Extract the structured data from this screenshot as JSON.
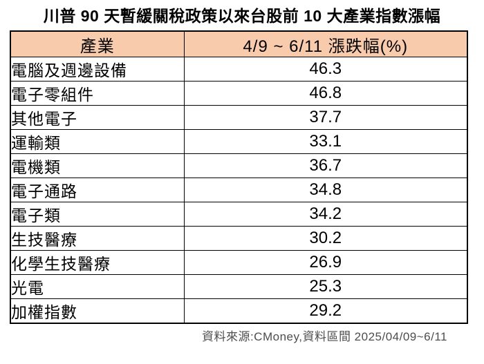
{
  "title": "川普 90 天暫緩關稅政策以來台股前 10 大產業指數漲幅",
  "footer": "資料來源:CMoney,資料區間 2025/04/09~6/11",
  "colors": {
    "header_bg": "#F8CBAD",
    "border": "#000000",
    "footer_text": "#4d4d4d"
  },
  "chart_data": {
    "type": "table",
    "title": "川普 90 天暫緩關稅政策以來台股前 10 大產業指數漲幅",
    "columns": [
      "產業",
      "4/9 ~ 6/11 漲跌幅(%)"
    ],
    "rows": [
      [
        "電腦及週邊設備",
        46.3
      ],
      [
        "電子零組件",
        46.8
      ],
      [
        "其他電子",
        37.7
      ],
      [
        "運輸類",
        33.1
      ],
      [
        "電機類",
        36.7
      ],
      [
        "電子通路",
        34.8
      ],
      [
        "電子類",
        34.2
      ],
      [
        "生技醫療",
        30.2
      ],
      [
        "化學生技醫療",
        26.9
      ],
      [
        "光電",
        25.3
      ],
      [
        "加權指數",
        29.2
      ]
    ],
    "source": "資料來源:CMoney,資料區間 2025/04/09~6/11",
    "layout_hints": {
      "header_background": "#F8CBAD",
      "value_alignment": "center",
      "industry_alignment": "left"
    }
  }
}
